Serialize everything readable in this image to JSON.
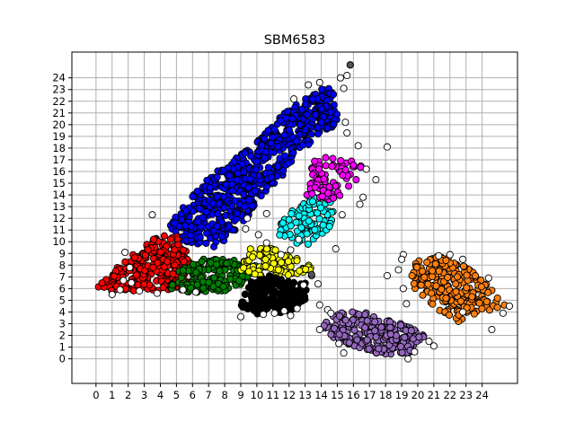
{
  "chart_data": {
    "type": "scatter",
    "title": "SBM6583",
    "xlabel": "",
    "ylabel": "",
    "grid": true,
    "xlim": [
      -1.5,
      26.2
    ],
    "ylim": [
      -2.1,
      26.2
    ],
    "x_ticks": [
      0,
      1,
      2,
      3,
      4,
      5,
      6,
      7,
      8,
      9,
      10,
      11,
      12,
      13,
      14,
      15,
      16,
      17,
      18,
      19,
      20,
      21,
      22,
      23,
      24
    ],
    "y_ticks": [
      0,
      1,
      2,
      3,
      4,
      5,
      6,
      7,
      8,
      9,
      10,
      11,
      12,
      13,
      14,
      15,
      16,
      17,
      18,
      19,
      20,
      21,
      22,
      23,
      24
    ],
    "x_tick_labels": [
      "0",
      "1",
      "2",
      "3",
      "4",
      "5",
      "6",
      "7",
      "8",
      "9",
      "10",
      "11",
      "12",
      "13",
      "14",
      "15",
      "16",
      "17",
      "18",
      "19",
      "20",
      "21",
      "22",
      "23",
      "24"
    ],
    "y_tick_labels": [
      "0",
      "1",
      "2",
      "3",
      "4",
      "5",
      "6",
      "7",
      "8",
      "9",
      "10",
      "11",
      "12",
      "13",
      "14",
      "15",
      "16",
      "17",
      "18",
      "19",
      "20",
      "21",
      "22",
      "23",
      "24"
    ],
    "clusters": [
      {
        "color": "#0000ff",
        "polygon": [
          [
            4.5,
            11.5
          ],
          [
            7,
            15.5
          ],
          [
            10,
            18.5
          ],
          [
            12,
            21.5
          ],
          [
            14.5,
            23.5
          ],
          [
            15,
            22
          ],
          [
            15,
            20
          ],
          [
            13,
            18
          ],
          [
            11.5,
            15.5
          ],
          [
            10,
            13.5
          ],
          [
            9,
            11
          ],
          [
            7.5,
            9.5
          ],
          [
            5,
            10
          ]
        ],
        "count": 230
      },
      {
        "color": "#ff0000",
        "polygon": [
          [
            0,
            6.2
          ],
          [
            0.5,
            7
          ],
          [
            2,
            8.5
          ],
          [
            3.5,
            10.5
          ],
          [
            5,
            10.5
          ],
          [
            5.8,
            9
          ],
          [
            5.8,
            6.5
          ],
          [
            4.5,
            5.8
          ],
          [
            3,
            5.8
          ],
          [
            1,
            5.8
          ]
        ],
        "count": 90
      },
      {
        "color": "#008000",
        "polygon": [
          [
            4.5,
            6
          ],
          [
            5,
            7.5
          ],
          [
            6.5,
            8.5
          ],
          [
            9,
            8.5
          ],
          [
            10,
            8
          ],
          [
            9.5,
            6.5
          ],
          [
            8,
            5.8
          ],
          [
            6,
            5.6
          ]
        ],
        "count": 55
      },
      {
        "color": "#ffff00",
        "polygon": [
          [
            9,
            7.5
          ],
          [
            9.5,
            9.5
          ],
          [
            11,
            9.5
          ],
          [
            13,
            8.5
          ],
          [
            13.5,
            7.5
          ],
          [
            12,
            7
          ],
          [
            10,
            7
          ]
        ],
        "count": 32
      },
      {
        "color": "#000000",
        "polygon": [
          [
            9,
            4.5
          ],
          [
            9.5,
            6.5
          ],
          [
            11,
            7.2
          ],
          [
            13,
            6.5
          ],
          [
            13.2,
            5
          ],
          [
            12,
            4
          ],
          [
            10,
            3.8
          ]
        ],
        "count": 60
      },
      {
        "color": "#00ffff",
        "polygon": [
          [
            11,
            11
          ],
          [
            12,
            12.5
          ],
          [
            13.5,
            14
          ],
          [
            15,
            13.5
          ],
          [
            14.5,
            11
          ],
          [
            13.5,
            9.5
          ],
          [
            12,
            10
          ]
        ],
        "count": 28
      },
      {
        "color": "#ff00ff",
        "polygon": [
          [
            13,
            14
          ],
          [
            13.5,
            17
          ],
          [
            15,
            17.5
          ],
          [
            16.5,
            16.5
          ],
          [
            16,
            14.5
          ],
          [
            14.5,
            13.5
          ]
        ],
        "count": 26
      },
      {
        "color": "#9467bd",
        "polygon": [
          [
            14,
            3
          ],
          [
            15,
            4
          ],
          [
            17,
            4
          ],
          [
            19,
            3
          ],
          [
            20.5,
            2
          ],
          [
            19.5,
            0.5
          ],
          [
            18,
            0.3
          ],
          [
            16,
            1
          ],
          [
            14.5,
            2
          ]
        ],
        "count": 85
      },
      {
        "color": "#ff7f0e",
        "polygon": [
          [
            19.5,
            7
          ],
          [
            20,
            8.5
          ],
          [
            21.5,
            8.8
          ],
          [
            23,
            8
          ],
          [
            24.2,
            6.5
          ],
          [
            25.5,
            4.5
          ],
          [
            24,
            4
          ],
          [
            22.5,
            3
          ],
          [
            21,
            4.5
          ],
          [
            20,
            5.5
          ]
        ],
        "count": 80
      }
    ],
    "outlier_color": "#ffffff",
    "outliers": [
      [
        15.8,
        25.1
      ],
      [
        15.6,
        24.2
      ],
      [
        15.2,
        24
      ],
      [
        15.4,
        23.1
      ],
      [
        13.9,
        23.6
      ],
      [
        13.2,
        23.4
      ],
      [
        12.3,
        22.2
      ],
      [
        15.5,
        20.2
      ],
      [
        15.6,
        19.3
      ],
      [
        16.3,
        18.2
      ],
      [
        18.1,
        18.1
      ],
      [
        16.8,
        16.2
      ],
      [
        17.4,
        15.3
      ],
      [
        16.6,
        13.8
      ],
      [
        16.4,
        13.2
      ],
      [
        15.3,
        12.3
      ],
      [
        14.9,
        9.4
      ],
      [
        12.6,
        10.2
      ],
      [
        12.1,
        9.3
      ],
      [
        11.5,
        8.9
      ],
      [
        10.6,
        9.9
      ],
      [
        10.1,
        10.6
      ],
      [
        9.3,
        11.1
      ],
      [
        9.4,
        12.0
      ],
      [
        10.6,
        12.4
      ],
      [
        13.4,
        7.1
      ],
      [
        12.9,
        6.3
      ],
      [
        13.8,
        6.4
      ],
      [
        13.9,
        4.6
      ],
      [
        14.4,
        4.2
      ],
      [
        14.6,
        3.9
      ],
      [
        15.1,
        1.3
      ],
      [
        15.4,
        0.5
      ],
      [
        13.9,
        2.5
      ],
      [
        19.4,
        0.0
      ],
      [
        19.8,
        0.6
      ],
      [
        21.0,
        1.1
      ],
      [
        20.7,
        1.5
      ],
      [
        19.1,
        8.9
      ],
      [
        19.0,
        8.5
      ],
      [
        18.8,
        7.6
      ],
      [
        18.1,
        7.1
      ],
      [
        19.1,
        6.0
      ],
      [
        19.3,
        4.7
      ],
      [
        21.3,
        8.8
      ],
      [
        22.0,
        8.9
      ],
      [
        22.8,
        8.5
      ],
      [
        24.4,
        6.9
      ],
      [
        25.7,
        4.5
      ],
      [
        25.3,
        3.9
      ],
      [
        24.6,
        2.5
      ],
      [
        22.8,
        4.0
      ],
      [
        3.5,
        12.3
      ],
      [
        1.8,
        9.1
      ],
      [
        2.1,
        7.8
      ],
      [
        1.7,
        6.7
      ],
      [
        1.0,
        5.5
      ],
      [
        1.5,
        5.9
      ],
      [
        2.2,
        6.5
      ],
      [
        2.7,
        5.8
      ],
      [
        3.8,
        5.6
      ],
      [
        5.4,
        5.9
      ],
      [
        6.2,
        5.7
      ],
      [
        9.0,
        3.6
      ],
      [
        10.4,
        3.8
      ],
      [
        11.1,
        3.9
      ],
      [
        11.7,
        4.1
      ],
      [
        12.1,
        3.7
      ],
      [
        12.5,
        4.3
      ]
    ],
    "dark_gray_points": [
      [
        15.8,
        25.1
      ],
      [
        13.4,
        7.2
      ]
    ]
  }
}
